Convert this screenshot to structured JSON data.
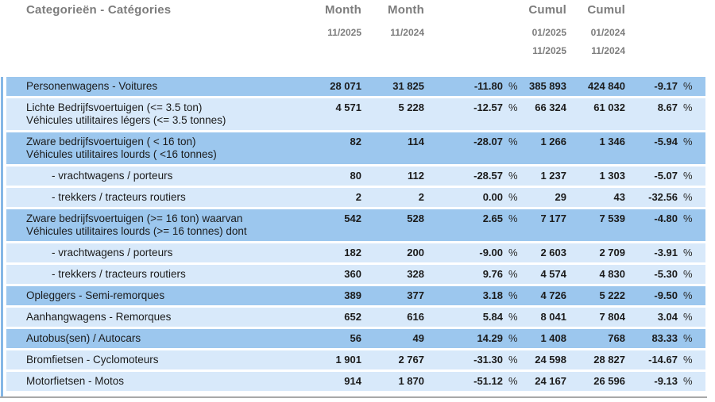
{
  "colors": {
    "row_dark": "#9CC7EE",
    "row_light": "#D8E9FA",
    "header_text": "#7D7D7D",
    "body_text": "#1B1B1B",
    "border_line": "#85B7E6",
    "bottom_line": "#A8A8A8"
  },
  "header": {
    "category_label": "Categorieën - Catégories",
    "month_current": {
      "title": "Month",
      "period": "11/2025"
    },
    "month_previous": {
      "title": "Month",
      "period": "11/2024"
    },
    "cumul_current": {
      "title": "Cumul",
      "period_from": "01/2025",
      "period_to": "11/2025"
    },
    "cumul_previous": {
      "title": "Cumul",
      "period_from": "01/2024",
      "period_to": "11/2024"
    }
  },
  "table": {
    "percent_symbol": "%",
    "rows": [
      {
        "label_lines": [
          "Personenwagens - Voitures"
        ],
        "indent": false,
        "variant": "dark",
        "m_cur": "28 071",
        "m_prev": "31 825",
        "m_chg": "-11.80",
        "c_cur": "385 893",
        "c_prev": "424 840",
        "c_chg": "-9.17"
      },
      {
        "label_lines": [
          "Lichte Bedrijfsvoertuigen (<= 3.5 ton)",
          "Véhicules utilitaires légers (<= 3.5 tonnes)"
        ],
        "indent": false,
        "variant": "light",
        "m_cur": "4 571",
        "m_prev": "5 228",
        "m_chg": "-12.57",
        "c_cur": "66 324",
        "c_prev": "61 032",
        "c_chg": "8.67"
      },
      {
        "label_lines": [
          "Zware bedrijfsvoertuigen ( < 16 ton)",
          "Véhicules utilitaires lourds ( <16 tonnes)"
        ],
        "indent": false,
        "variant": "dark",
        "m_cur": "82",
        "m_prev": "114",
        "m_chg": "-28.07",
        "c_cur": "1 266",
        "c_prev": "1 346",
        "c_chg": "-5.94"
      },
      {
        "label_lines": [
          "- vrachtwagens / porteurs"
        ],
        "indent": true,
        "variant": "light",
        "m_cur": "80",
        "m_prev": "112",
        "m_chg": "-28.57",
        "c_cur": "1 237",
        "c_prev": "1 303",
        "c_chg": "-5.07"
      },
      {
        "label_lines": [
          "- trekkers / tracteurs routiers"
        ],
        "indent": true,
        "variant": "light",
        "m_cur": "2",
        "m_prev": "2",
        "m_chg": "0.00",
        "c_cur": "29",
        "c_prev": "43",
        "c_chg": "-32.56"
      },
      {
        "label_lines": [
          "Zware bedrijfsvoertuigen (>= 16 ton) waarvan",
          "Véhicules utilitaires lourds (>= 16 tonnes) dont"
        ],
        "indent": false,
        "variant": "dark",
        "m_cur": "542",
        "m_prev": "528",
        "m_chg": "2.65",
        "c_cur": "7 177",
        "c_prev": "7 539",
        "c_chg": "-4.80"
      },
      {
        "label_lines": [
          "- vrachtwagens / porteurs"
        ],
        "indent": true,
        "variant": "light",
        "m_cur": "182",
        "m_prev": "200",
        "m_chg": "-9.00",
        "c_cur": "2 603",
        "c_prev": "2 709",
        "c_chg": "-3.91"
      },
      {
        "label_lines": [
          "- trekkers / tracteurs routiers"
        ],
        "indent": true,
        "variant": "light",
        "m_cur": "360",
        "m_prev": "328",
        "m_chg": "9.76",
        "c_cur": "4 574",
        "c_prev": "4 830",
        "c_chg": "-5.30"
      },
      {
        "label_lines": [
          "Opleggers - Semi-remorques"
        ],
        "indent": false,
        "variant": "dark",
        "m_cur": "389",
        "m_prev": "377",
        "m_chg": "3.18",
        "c_cur": "4 726",
        "c_prev": "5 222",
        "c_chg": "-9.50"
      },
      {
        "label_lines": [
          "Aanhangwagens - Remorques"
        ],
        "indent": false,
        "variant": "light",
        "m_cur": "652",
        "m_prev": "616",
        "m_chg": "5.84",
        "c_cur": "8 041",
        "c_prev": "7 804",
        "c_chg": "3.04"
      },
      {
        "label_lines": [
          "Autobus(sen) / Autocars"
        ],
        "indent": false,
        "variant": "dark",
        "m_cur": "56",
        "m_prev": "49",
        "m_chg": "14.29",
        "c_cur": "1 408",
        "c_prev": "768",
        "c_chg": "83.33"
      },
      {
        "label_lines": [
          "Bromfietsen - Cyclomoteurs"
        ],
        "indent": false,
        "variant": "light",
        "m_cur": "1 901",
        "m_prev": "2 767",
        "m_chg": "-31.30",
        "c_cur": "24 598",
        "c_prev": "28 827",
        "c_chg": "-14.67"
      },
      {
        "label_lines": [
          "Motorfietsen - Motos"
        ],
        "indent": false,
        "variant": "light",
        "m_cur": "914",
        "m_prev": "1 870",
        "m_chg": "-51.12",
        "c_cur": "24 167",
        "c_prev": "26 596",
        "c_chg": "-9.13"
      }
    ]
  }
}
